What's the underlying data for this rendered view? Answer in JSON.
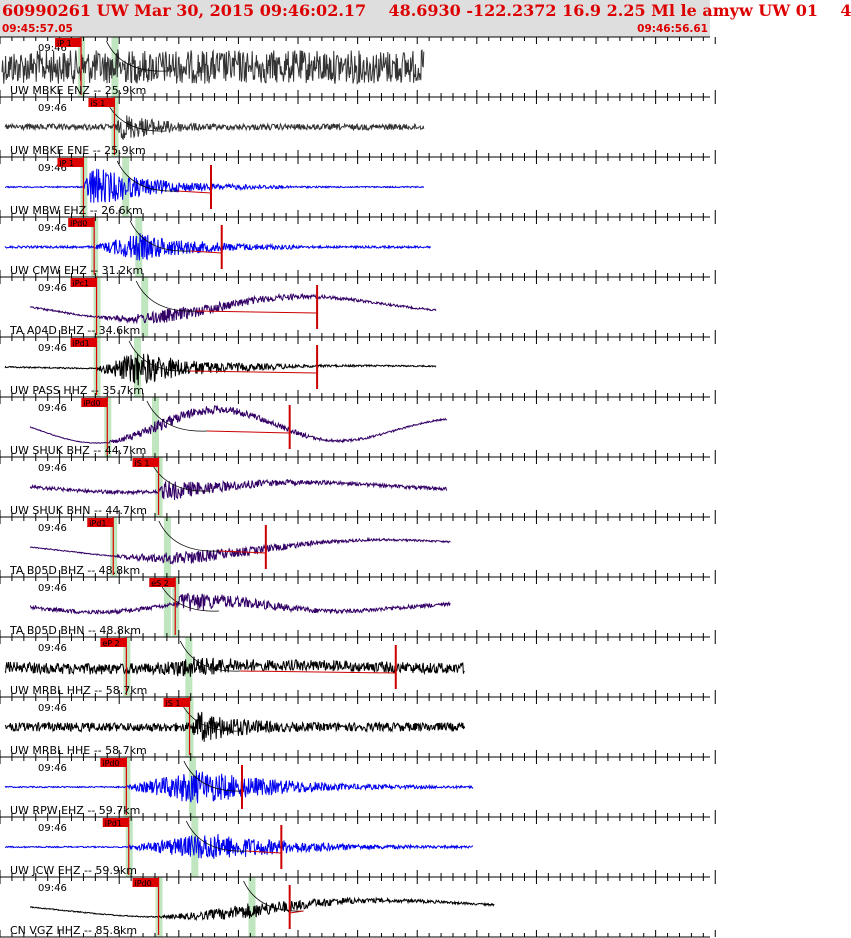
{
  "header": {
    "title": "60990261 UW Mar 30, 2015 09:46:02.17    48.6930 -122.2372 16.9 2.25 Ml le amyw UW 01    4",
    "start_time": "09:45:57.05",
    "end_time": "09:46:56.61"
  },
  "colors": {
    "header_bg": "#dedede",
    "header_text": "#dd0000",
    "pick_flag": "#dd0000",
    "pick_window": "#bfe6bf",
    "travel_curve": "#000000",
    "amp_line": "#cc0000",
    "separator": "#000000"
  },
  "chart_data": {
    "type": "line",
    "title": "60990261 UW Mar 30, 2015 09:46:02.17    48.6930 -122.2372 16.9 2.25 Ml le amyw UW 01    4",
    "x_range_seconds": [
      0,
      59.56
    ],
    "time_axis_label": "09:46",
    "grid": "minor vertical ticks every ~1 s, major every ~5 s",
    "traces": [
      {
        "label": "UW MBKE ENZ -- 25.9km",
        "color": "#333333",
        "pick": "iP 1",
        "pick_t": 6.8,
        "wave_end_t": 35.6,
        "peak_t": 9.6,
        "decay": 4.0,
        "amp": 0.95,
        "noise": 0.85,
        "hf": 0.9,
        "lp": 0.0,
        "s_t": 9.6,
        "amp_mark_t": null
      },
      {
        "label": "UW MBKE ENE -- 25.9km",
        "color": "#333333",
        "pick": "iS 1",
        "pick_t": 9.6,
        "wave_end_t": 35.6,
        "peak_t": 10.3,
        "decay": 4.0,
        "amp": 0.65,
        "noise": 0.15,
        "hf": 0.9,
        "lp": 0.0,
        "s_t": 9.6,
        "amp_mark_t": null
      },
      {
        "label": "UW MBW EHZ -- 26.6km",
        "color": "#0000ee",
        "pick": "iP 1",
        "pick_t": 7.0,
        "wave_end_t": 35.6,
        "peak_t": 7.6,
        "decay": 4.5,
        "amp": 0.95,
        "noise": 0.03,
        "hf": 1.0,
        "lp": 0.0,
        "s_t": 10.5,
        "amp_mark_t": 17.7
      },
      {
        "label": "UW CMW EHZ -- 31.2km",
        "color": "#0000ee",
        "pick": "iPd0",
        "pick_t": 7.9,
        "wave_end_t": 36.2,
        "peak_t": 11.5,
        "decay": 5.0,
        "amp": 0.6,
        "noise": 0.05,
        "hf": 1.0,
        "lp": 0.0,
        "s_t": 11.6,
        "amp_mark_t": 18.6
      },
      {
        "label": "TA A04D BHZ -- 34.6km",
        "color": "#330066",
        "pick": "iPc1",
        "pick_t": 8.1,
        "wave_end_t": 36.6,
        "peak_t": 14.0,
        "decay": 9.0,
        "amp": 0.35,
        "noise": 0.05,
        "hf": 0.8,
        "lp": 0.55,
        "s_t": 12.1,
        "amp_mark_t": 26.6
      },
      {
        "label": "UW PASS HHZ -- 35.7km",
        "color": "#000000",
        "pick": "iPd1",
        "pick_t": 8.1,
        "wave_end_t": 36.6,
        "peak_t": 11.5,
        "decay": 5.0,
        "amp": 0.75,
        "noise": 0.03,
        "hf": 1.0,
        "lp": 0.08,
        "s_t": 11.5,
        "amp_mark_t": 26.6
      },
      {
        "label": "UW SHUK BHZ -- 44.7km",
        "color": "#330066",
        "pick": "iPd0",
        "pick_t": 9.0,
        "wave_end_t": 37.5,
        "peak_t": 13.0,
        "decay": 9.0,
        "amp": 0.3,
        "noise": 0.02,
        "hf": 0.8,
        "lp": 0.8,
        "s_t": 13.0,
        "amp_mark_t": 24.3
      },
      {
        "label": "UW SHUK BHN -- 44.7km",
        "color": "#330066",
        "pick": "iS 1",
        "pick_t": 13.3,
        "wave_end_t": 37.5,
        "peak_t": 13.8,
        "decay": 6.0,
        "amp": 0.55,
        "noise": 0.1,
        "hf": 0.8,
        "lp": 0.25,
        "s_t": 13.3,
        "amp_mark_t": null
      },
      {
        "label": "TA B05D BHZ -- 48.8km",
        "color": "#330066",
        "pick": "iPd1",
        "pick_t": 9.5,
        "wave_end_t": 37.8,
        "peak_t": 15.5,
        "decay": 8.0,
        "amp": 0.35,
        "noise": 0.03,
        "hf": 0.8,
        "lp": 0.5,
        "s_t": 14.0,
        "amp_mark_t": 22.3
      },
      {
        "label": "TA B05D BHN -- 48.8km",
        "color": "#330066",
        "pick": "eS 2",
        "pick_t": 14.7,
        "wave_end_t": 37.8,
        "peak_t": 15.2,
        "decay": 6.0,
        "amp": 0.6,
        "noise": 0.12,
        "hf": 0.8,
        "lp": 0.25,
        "s_t": 14.0,
        "amp_mark_t": null
      },
      {
        "label": "UW MRBL HHZ -- 58.7km",
        "color": "#000000",
        "pick": "eP 2",
        "pick_t": 10.6,
        "wave_end_t": 39.0,
        "peak_t": 16.0,
        "decay": 7.0,
        "amp": 0.45,
        "noise": 0.25,
        "hf": 1.0,
        "lp": 0.1,
        "s_t": 15.8,
        "amp_mark_t": 33.2
      },
      {
        "label": "UW MRBL HHE -- 58.7km",
        "color": "#000000",
        "pick": "iS 1",
        "pick_t": 15.9,
        "wave_end_t": 39.0,
        "peak_t": 16.5,
        "decay": 5.0,
        "amp": 0.7,
        "noise": 0.2,
        "hf": 1.0,
        "lp": 0.0,
        "s_t": 15.8,
        "amp_mark_t": null
      },
      {
        "label": "UW RPW EHZ -- 59.7km",
        "color": "#0000ee",
        "pick": "iPd0",
        "pick_t": 10.6,
        "wave_end_t": 39.7,
        "peak_t": 16.5,
        "decay": 7.0,
        "amp": 0.75,
        "noise": 0.03,
        "hf": 1.0,
        "lp": 0.0,
        "s_t": 16.1,
        "amp_mark_t": 20.3
      },
      {
        "label": "UW JCW EHZ -- 59.9km",
        "color": "#0000ee",
        "pick": "iPd1",
        "pick_t": 10.8,
        "wave_end_t": 39.7,
        "peak_t": 17.5,
        "decay": 7.0,
        "amp": 0.6,
        "noise": 0.03,
        "hf": 1.0,
        "lp": 0.0,
        "s_t": 16.3,
        "amp_mark_t": 23.6
      },
      {
        "label": "CN VGZ HHZ -- 85.8km",
        "color": "#000000",
        "pick": "iPd0",
        "pick_t": 13.3,
        "wave_end_t": 41.5,
        "peak_t": 21.0,
        "decay": 8.0,
        "amp": 0.4,
        "noise": 0.03,
        "hf": 0.8,
        "lp": 0.45,
        "s_t": 21.1,
        "amp_mark_t": 24.3
      }
    ]
  }
}
